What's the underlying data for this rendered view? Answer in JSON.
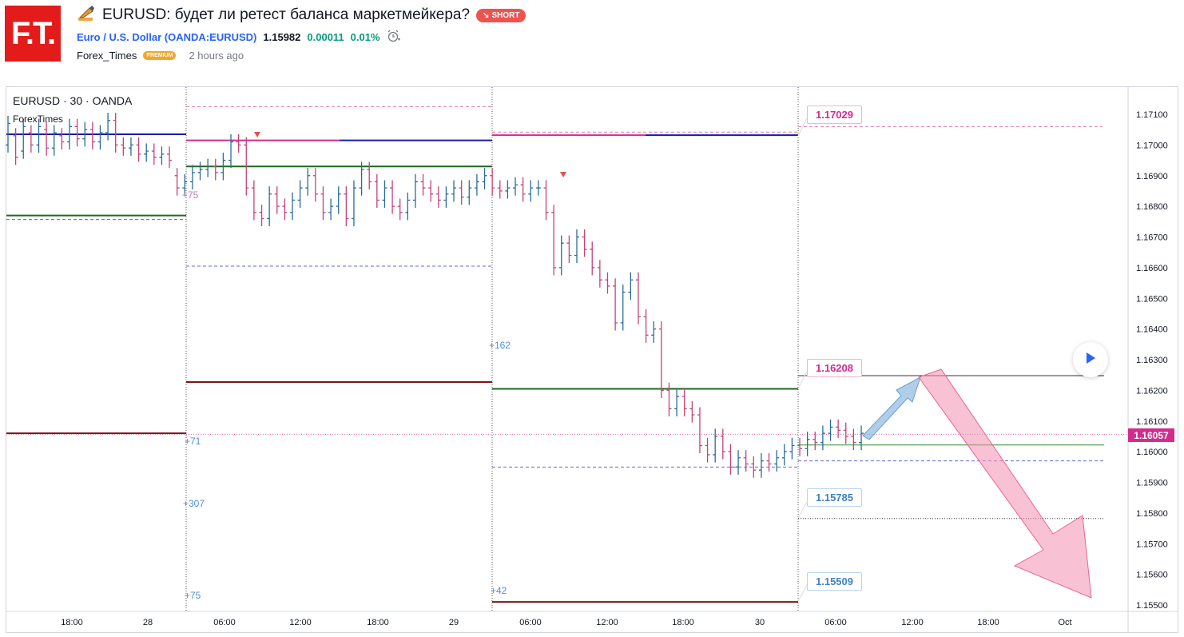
{
  "header": {
    "logo_text": "F.T.",
    "title": "EURUSD: будет ли ретест баланса маркетмейкера?",
    "badge": "SHORT",
    "symbol_name": "Euro / U.S. Dollar",
    "symbol_code": "OANDA:EURUSD",
    "price": "1.15982",
    "change": "0.00011",
    "change_pct": "0.01%",
    "author": "Forex_Times",
    "author_badge": "PREMIUM",
    "time_ago": "2 hours ago"
  },
  "chart": {
    "legend_symbol": "EURUSD · 30 · OANDA",
    "legend_indicator": "ForexTimes",
    "current_price": "1.16057",
    "price_boxes": [
      "1.17029",
      "1.16208",
      "1.15785",
      "1.15509"
    ],
    "level_labels": [
      "+75",
      "+162",
      "+71",
      "+307",
      "+75",
      "+42"
    ],
    "y_ticks": [
      "1.17100",
      "1.17000",
      "1.16900",
      "1.16800",
      "1.16700",
      "1.16600",
      "1.16500",
      "1.16400",
      "1.16300",
      "1.16200",
      "1.16100",
      "1.16000",
      "1.15900",
      "1.15800",
      "1.15700",
      "1.15600",
      "1.15500"
    ],
    "x_ticks": [
      "18:00",
      "28",
      "06:00",
      "12:00",
      "18:00",
      "29",
      "06:00",
      "12:00",
      "18:00",
      "30",
      "06:00",
      "12:00",
      "18:00",
      "Oct"
    ],
    "colors": {
      "up": "#2a6c99",
      "down": "#c4427b",
      "magenta": "#d22c8f",
      "navy": "#1a1aa8",
      "green": "#1b6b1b",
      "maroon": "#7a1414",
      "pink_arrow": "#f48fb1",
      "blue_arrow": "#8fb8e0"
    }
  },
  "chart_data": {
    "type": "candlestick",
    "ylim": [
      1.1549,
      1.1715
    ],
    "y_ticks": [
      1.171,
      1.17,
      1.169,
      1.168,
      1.167,
      1.166,
      1.165,
      1.164,
      1.163,
      1.162,
      1.161,
      1.16,
      1.159,
      1.158,
      1.157,
      1.156,
      1.155
    ],
    "current_price": 1.16057,
    "levels": [
      1.17029,
      1.16208,
      1.15785,
      1.15509
    ]
  }
}
